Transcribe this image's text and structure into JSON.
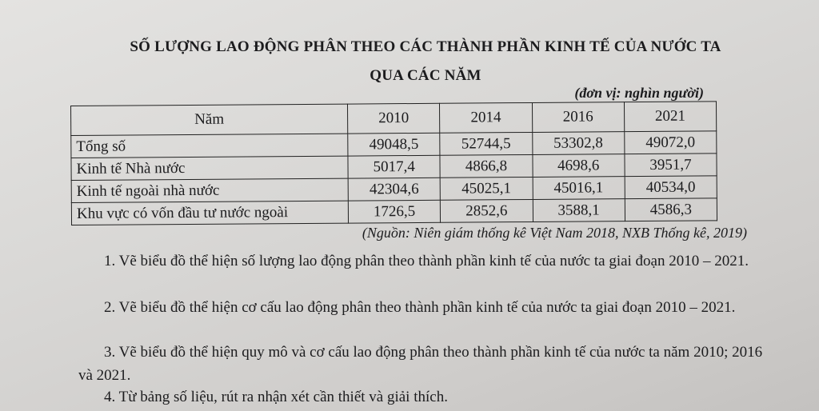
{
  "title_line1": "SỐ LƯỢNG LAO ĐỘNG PHÂN THEO CÁC THÀNH PHẦN KINH TẾ CỦA NƯỚC TA",
  "title_line2": "QUA CÁC NĂM",
  "unit": "(đơn vị: nghìn người)",
  "table": {
    "header": [
      "Năm",
      "2010",
      "2014",
      "2016",
      "2021"
    ],
    "rows": [
      {
        "label": "Tổng số",
        "values": [
          "49048,5",
          "52744,5",
          "53302,8",
          "49072,0"
        ]
      },
      {
        "label": "Kinh tế Nhà nước",
        "values": [
          "5017,4",
          "4866,8",
          "4698,6",
          "3951,7"
        ]
      },
      {
        "label": "Kinh tế ngoài nhà nước",
        "values": [
          "42304,6",
          "45025,1",
          "45016,1",
          "40534,0"
        ]
      },
      {
        "label": "Khu vực có vốn đầu tư nước ngoài",
        "values": [
          "1726,5",
          "2852,6",
          "3588,1",
          "4586,3"
        ]
      }
    ]
  },
  "source": "(Nguồn: Niên giám thống kê Việt Nam 2018, NXB Thống kê, 2019)",
  "questions": [
    "1. Vẽ biểu đồ thể hiện số lượng lao động phân theo thành phần kinh tế của nước ta giai đoạn 2010 – 2021.",
    "2. Vẽ biểu đồ thể hiện cơ cấu lao động phân theo thành phần kinh tế của nước ta giai đoạn 2010 – 2021.",
    "3. Vẽ biểu đồ thể hiện quy mô và cơ cấu lao động phân theo thành phần kinh tế của nước ta năm 2010; 2016 và 2021.",
    "4. Từ bảng số liệu, rút ra nhận xét cần thiết và giải thích."
  ]
}
